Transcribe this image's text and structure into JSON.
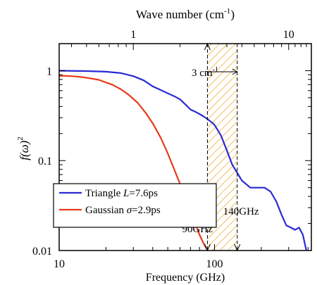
{
  "chart_data": {
    "type": "line",
    "title": "",
    "xlabel": "Frequency (GHz)",
    "ylabel_parts": {
      "main": "f(ω)",
      "sup": "2"
    },
    "x2label_parts": {
      "main": "Wave number (cm",
      "sup": "-1",
      "end": ")"
    },
    "xscale": "log",
    "yscale": "log",
    "xlim": [
      10,
      420
    ],
    "ylim": [
      0.01,
      2
    ],
    "x_ticks": [
      {
        "value": 10,
        "label": "10"
      },
      {
        "value": 100,
        "label": "100"
      }
    ],
    "y_ticks": [
      {
        "value": 1,
        "label": "1"
      },
      {
        "value": 0.1,
        "label": "0.1"
      },
      {
        "value": 0.01,
        "label": "0.01"
      }
    ],
    "x2_ticks": [
      {
        "value": 1,
        "label": "1"
      },
      {
        "value": 10,
        "label": "10"
      }
    ],
    "ghz_per_wavenumber": 30,
    "grid": false,
    "legend_position": "lower-left",
    "series": [
      {
        "name_parts": {
          "text": "Triangle ",
          "sym": "L",
          "eq": "=7.6ps"
        },
        "color": "#2a2ad6",
        "x": [
          10,
          15,
          20,
          25,
          30,
          35,
          40,
          45,
          50,
          55,
          60,
          65,
          70,
          75,
          80,
          85,
          90,
          95,
          100,
          110,
          120,
          130,
          150,
          170,
          190,
          210,
          230,
          250,
          270,
          290,
          310,
          330,
          350,
          370,
          390
        ],
        "y": [
          1.0,
          0.99,
          0.975,
          0.94,
          0.87,
          0.78,
          0.67,
          0.61,
          0.56,
          0.52,
          0.48,
          0.42,
          0.37,
          0.35,
          0.33,
          0.31,
          0.29,
          0.27,
          0.25,
          0.19,
          0.13,
          0.09,
          0.06,
          0.05,
          0.05,
          0.05,
          0.045,
          0.035,
          0.025,
          0.019,
          0.018,
          0.017,
          0.018,
          0.015,
          0.01
        ]
      },
      {
        "name_parts": {
          "text": "Gaussian ",
          "sym": "σ",
          "eq": "=2.9ps"
        },
        "color": "#e83a1c",
        "x": [
          10,
          12,
          14,
          16,
          18,
          20,
          22,
          25,
          28,
          32,
          36,
          40,
          45,
          50,
          55,
          60,
          65,
          70,
          75,
          80,
          85,
          88,
          90
        ],
        "y": [
          0.88,
          0.87,
          0.85,
          0.82,
          0.79,
          0.74,
          0.7,
          0.62,
          0.54,
          0.44,
          0.34,
          0.26,
          0.18,
          0.12,
          0.08,
          0.055,
          0.038,
          0.027,
          0.02,
          0.015,
          0.012,
          0.0108,
          0.0102
        ]
      }
    ],
    "shaded_region": {
      "x_from": 90,
      "x_to": 140,
      "color": "#f0a020"
    },
    "annotations": [
      {
        "text": "90GHz",
        "x": 90
      },
      {
        "text": "140GHz",
        "x": 140
      }
    ],
    "span_label": {
      "main": "3 cm",
      "sup": "-1"
    }
  }
}
